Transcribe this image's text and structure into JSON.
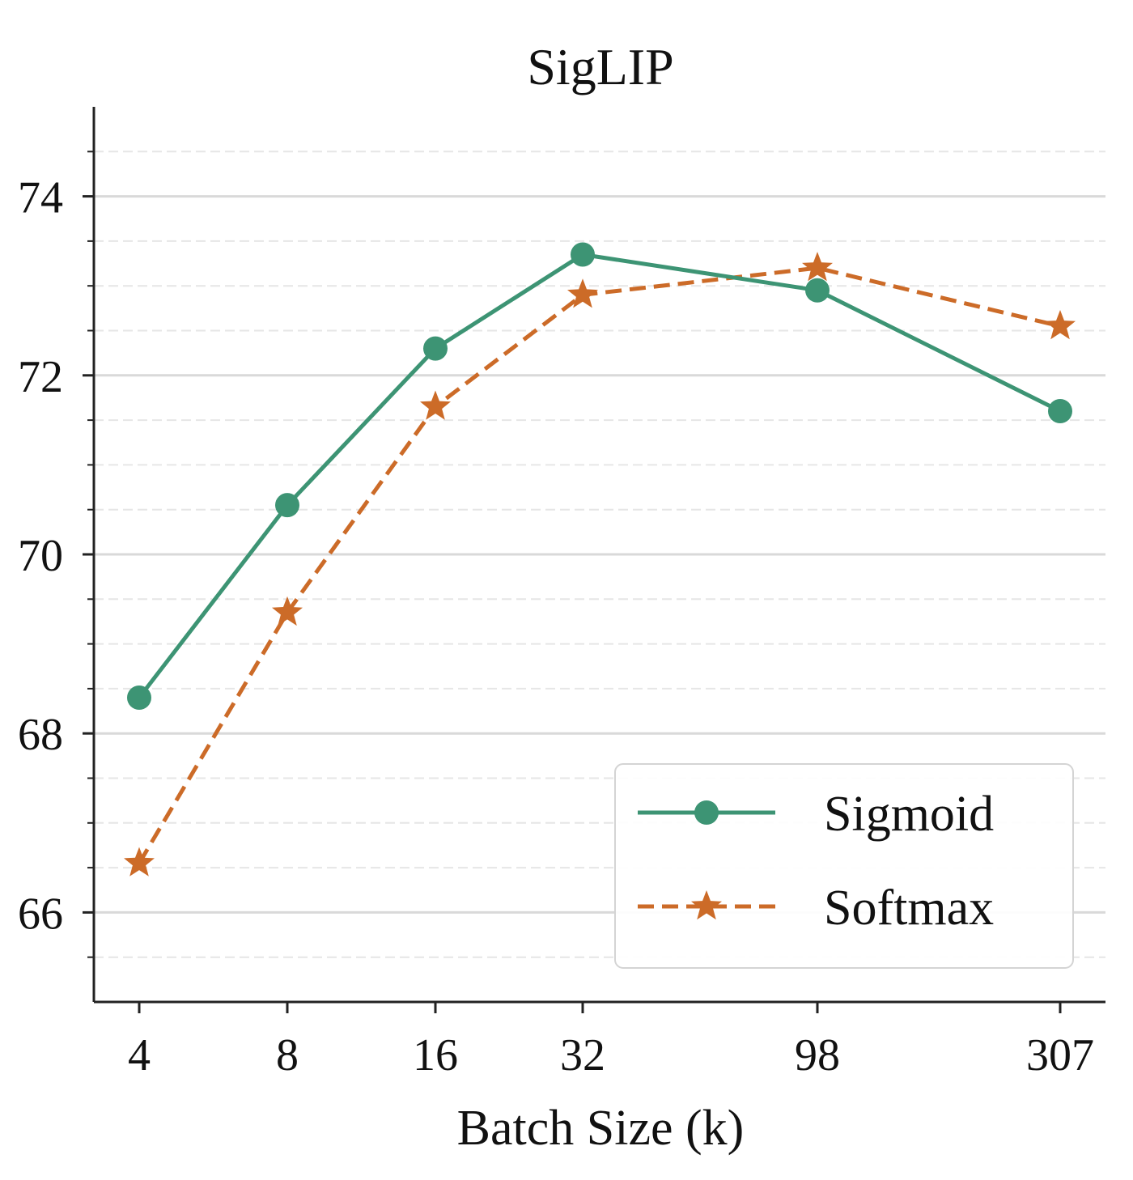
{
  "chart_data": {
    "type": "line",
    "title": "SigLIP",
    "xlabel": "Batch Size (k)",
    "ylabel": "",
    "categories": [
      "4",
      "8",
      "16",
      "32",
      "98",
      "307"
    ],
    "x": [
      4,
      8,
      16,
      32,
      98,
      307
    ],
    "ylim": [
      65,
      75
    ],
    "yticks": [
      66,
      68,
      70,
      72,
      74
    ],
    "yticks_minor": [
      65.5,
      66.5,
      67,
      67.5,
      68.5,
      69,
      69.5,
      70.5,
      71,
      71.5,
      72.5,
      73,
      73.5,
      74.5
    ],
    "grid": true,
    "legend_position": "bottom-right",
    "series": [
      {
        "name": "Sigmoid",
        "values": [
          68.4,
          70.55,
          72.3,
          73.35,
          72.95,
          71.6
        ],
        "color": "#3d9474",
        "linestyle": "solid",
        "marker": "circle"
      },
      {
        "name": "Softmax",
        "values": [
          66.55,
          69.35,
          71.65,
          72.9,
          73.2,
          72.55
        ],
        "color": "#cc6b28",
        "linestyle": "dashed",
        "marker": "star"
      }
    ]
  }
}
